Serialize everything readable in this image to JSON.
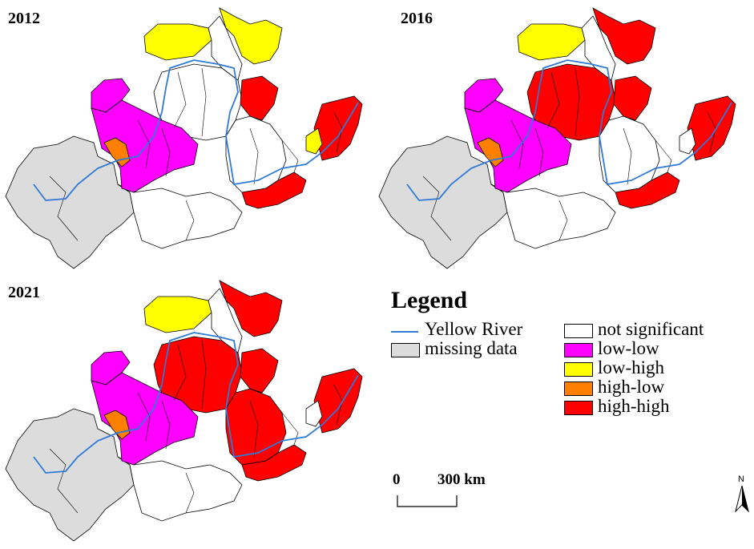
{
  "panels": [
    {
      "year": "2012",
      "regions": {
        "north_a": "low-high",
        "north_b": "low-high",
        "north_c": "not significant",
        "center_big": "not significant",
        "center_ne": "high-high",
        "ll_north": "low-low",
        "ll_main": "low-low",
        "hl": "high-low",
        "east": "high-high",
        "east_small": "low-high",
        "south_strip": "high-high",
        "west": "missing data",
        "south": "not significant",
        "mid_east": "not significant"
      }
    },
    {
      "year": "2016",
      "regions": {
        "north_a": "low-high",
        "north_b": "high-high",
        "north_c": "not significant",
        "center_big": "high-high",
        "center_ne": "high-high",
        "ll_north": "low-low",
        "ll_main": "low-low",
        "hl": "high-low",
        "east": "high-high",
        "east_small": "not significant",
        "south_strip": "high-high",
        "west": "missing data",
        "south": "not significant",
        "mid_east": "not significant"
      }
    },
    {
      "year": "2021",
      "regions": {
        "north_a": "low-high",
        "north_b": "high-high",
        "north_c": "not significant",
        "center_big": "high-high",
        "center_ne": "high-high",
        "ll_north": "low-low",
        "ll_main": "low-low",
        "hl": "high-low",
        "east": "high-high",
        "east_small": "not significant",
        "south_strip": "high-high",
        "west": "missing data",
        "south": "not significant",
        "mid_east": "high-high"
      }
    }
  ],
  "legend": {
    "title": "Legend",
    "river_label": "Yellow River",
    "missing_label": "missing data",
    "categories": [
      "not significant",
      "low-low",
      "low-high",
      "high-low",
      "high-high"
    ]
  },
  "colors": {
    "not significant": "#ffffff",
    "low-low": "#ff00ff",
    "low-high": "#ffff00",
    "high-low": "#ff7f00",
    "high-high": "#ff0000",
    "missing data": "#dcdcdc",
    "river": "#2f7ad6"
  },
  "scalebar": {
    "zero": "0",
    "distance": "300 km"
  },
  "north_label": "N"
}
